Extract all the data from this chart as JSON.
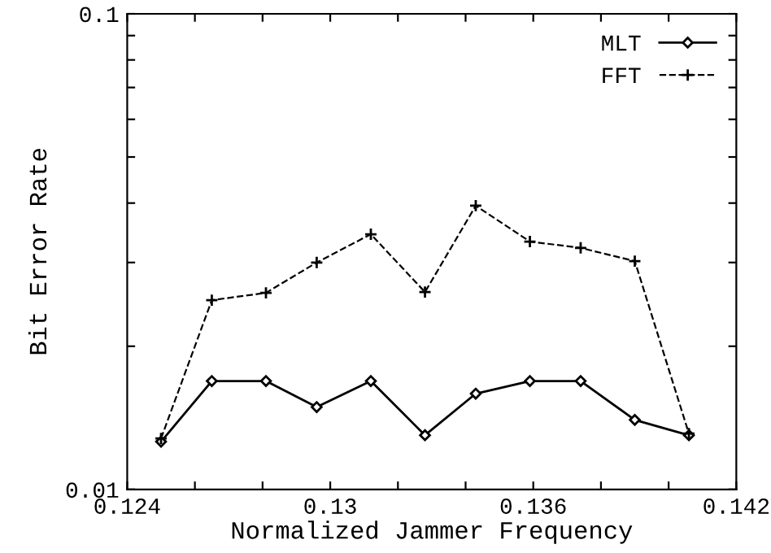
{
  "chart_data": {
    "type": "line",
    "xlabel": "Normalized Jammer Frequency",
    "ylabel": "Bit Error Rate",
    "log": "y",
    "x": [
      0.125,
      0.1265,
      0.1281,
      0.1296,
      0.1312,
      0.1328,
      0.1343,
      0.1359,
      0.1374,
      0.139,
      0.1406
    ],
    "series": [
      {
        "name": "MLT",
        "color": "#000000",
        "marker": "diamond",
        "line_style": "solid",
        "values": [
          0.0126,
          0.0169,
          0.0169,
          0.0149,
          0.0169,
          0.013,
          0.0159,
          0.0169,
          0.0169,
          0.014,
          0.013
        ]
      },
      {
        "name": "FFT",
        "color": "#000000",
        "marker": "cross",
        "line_style": "dashed",
        "values": [
          0.0128,
          0.025,
          0.0259,
          0.03,
          0.0344,
          0.026,
          0.0395,
          0.0332,
          0.0322,
          0.0302,
          0.0131
        ]
      }
    ],
    "xlim": [
      0.124,
      0.142
    ],
    "xticks": [
      0.124,
      {
        "value": 0.126,
        "label": null
      },
      {
        "value": 0.128,
        "label": null
      },
      0.13,
      {
        "value": 0.132,
        "label": null
      },
      {
        "value": 0.134,
        "label": null
      },
      0.136,
      {
        "value": 0.138,
        "label": null
      },
      {
        "value": 0.14,
        "label": null
      },
      0.142
    ],
    "ylim": [
      0.01,
      0.1
    ],
    "yticks": [
      0.01,
      {
        "value": 0.02,
        "label": null
      },
      {
        "value": 0.03,
        "label": null
      },
      {
        "value": 0.04,
        "label": null
      },
      {
        "value": 0.05,
        "label": null
      },
      {
        "value": 0.06,
        "label": null
      },
      {
        "value": 0.07,
        "label": null
      },
      {
        "value": 0.08,
        "label": null
      },
      {
        "value": 0.09,
        "label": null
      },
      0.1
    ],
    "grid": false,
    "legend": "top right"
  }
}
